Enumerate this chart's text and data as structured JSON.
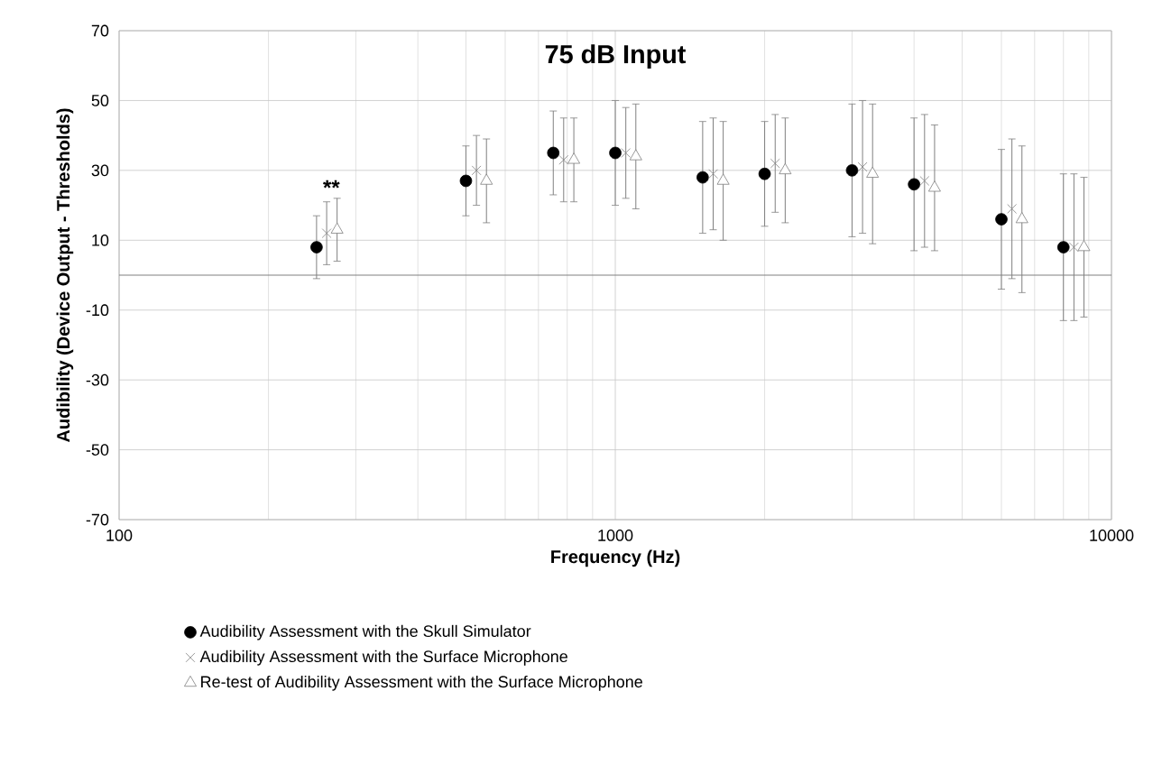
{
  "chart_data": {
    "type": "scatter",
    "title": "75 dB Input",
    "xlabel": "Frequency (Hz)",
    "ylabel": "Audibility (Device Output - Thresholds)",
    "log": "x",
    "grid": true,
    "legend": "bottom",
    "xlim": [
      100,
      10000
    ],
    "xticks": [
      100,
      1000,
      10000
    ],
    "ylim": [
      -70,
      70
    ],
    "yticks": [
      -70,
      -50,
      -30,
      -10,
      10,
      30,
      50,
      70
    ],
    "ref_lines": [
      {
        "axis": "y",
        "value": 0,
        "color": "#808080"
      }
    ],
    "annotations": [
      "**"
    ],
    "series": [
      {
        "name": "Audibility Assessment with the Skull Simulator",
        "color": "#000000",
        "marker": "circle",
        "x": [
          250,
          500,
          750,
          1000,
          1500,
          2000,
          3000,
          4000,
          6000,
          8000
        ],
        "values": [
          8,
          27,
          35,
          35,
          28,
          29,
          30,
          26,
          16,
          8
        ],
        "errors": [
          9,
          10,
          12,
          15,
          16,
          15,
          19,
          19,
          20,
          21
        ]
      },
      {
        "name": "Audibility Assessment with the Surface Microphone",
        "color": "#808080",
        "marker": "cross",
        "x": [
          262,
          525,
          787,
          1050,
          1575,
          2100,
          3150,
          4200,
          6300,
          8400
        ],
        "values": [
          12,
          30,
          33,
          35,
          29,
          32,
          31,
          27,
          19,
          8
        ],
        "errors": [
          9,
          10,
          12,
          13,
          16,
          14,
          19,
          19,
          20,
          21
        ]
      },
      {
        "name": "Re-test of Audibility Assessment with the Surface Microphone",
        "color": "#808080",
        "marker": "triangle",
        "x": [
          275,
          550,
          825,
          1100,
          1650,
          2200,
          3300,
          4400,
          6600,
          8800
        ],
        "values": [
          13,
          27,
          33,
          34,
          27,
          30,
          29,
          25,
          16,
          8
        ],
        "errors": [
          9,
          12,
          12,
          15,
          17,
          15,
          20,
          18,
          21,
          20
        ]
      }
    ]
  }
}
